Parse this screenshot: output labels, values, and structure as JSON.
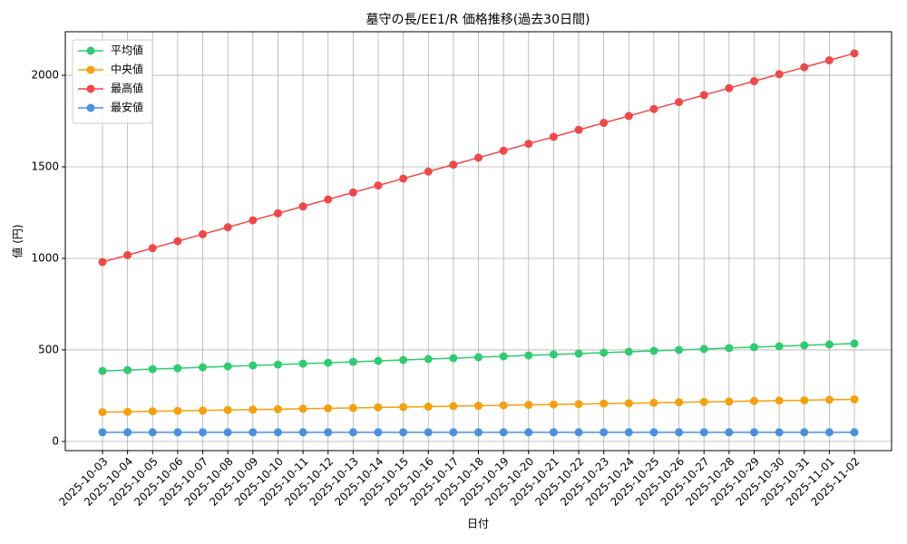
{
  "chart_data": {
    "type": "line",
    "title": "墓守の長/EE1/R 価格推移(過去30日間)",
    "x_label": "日付",
    "y_label": "値 (円)",
    "categories": [
      "2025-10-03",
      "2025-10-04",
      "2025-10-05",
      "2025-10-06",
      "2025-10-07",
      "2025-10-08",
      "2025-10-09",
      "2025-10-10",
      "2025-10-11",
      "2025-10-12",
      "2025-10-13",
      "2025-10-14",
      "2025-10-15",
      "2025-10-16",
      "2025-10-17",
      "2025-10-18",
      "2025-10-19",
      "2025-10-20",
      "2025-10-21",
      "2025-10-22",
      "2025-10-23",
      "2025-10-24",
      "2025-10-25",
      "2025-10-26",
      "2025-10-27",
      "2025-10-28",
      "2025-10-29",
      "2025-10-30",
      "2025-10-31",
      "2025-11-01",
      "2025-11-02"
    ],
    "series": [
      {
        "name": "平均値",
        "color": "#2ecc71",
        "values": [
          385,
          390,
          395,
          400,
          405,
          410,
          415,
          420,
          425,
          430,
          435,
          440,
          445,
          450,
          455,
          460,
          465,
          470,
          475,
          480,
          485,
          490,
          495,
          500,
          505,
          510,
          515,
          520,
          525,
          530,
          535
        ]
      },
      {
        "name": "中央値",
        "color": "#f5a00c",
        "values": [
          160,
          162,
          165,
          167,
          169,
          172,
          174,
          176,
          179,
          181,
          183,
          186,
          188,
          190,
          193,
          195,
          197,
          200,
          202,
          204,
          207,
          209,
          211,
          214,
          216,
          218,
          221,
          223,
          225,
          228,
          230
        ]
      },
      {
        "name": "最高値",
        "color": "#f04848",
        "values": [
          980,
          1018,
          1056,
          1094,
          1132,
          1170,
          1208,
          1246,
          1284,
          1322,
          1360,
          1398,
          1436,
          1474,
          1512,
          1550,
          1588,
          1626,
          1664,
          1702,
          1740,
          1778,
          1816,
          1854,
          1892,
          1930,
          1968,
          2006,
          2044,
          2082,
          2120
        ]
      },
      {
        "name": "最安値",
        "color": "#4a90e2",
        "values": [
          50,
          50,
          50,
          50,
          50,
          50,
          50,
          50,
          50,
          50,
          50,
          50,
          50,
          50,
          50,
          50,
          50,
          50,
          50,
          50,
          50,
          50,
          50,
          50,
          50,
          50,
          50,
          50,
          50,
          50,
          50
        ]
      }
    ],
    "ylim": [
      -50,
      2238
    ],
    "yticks": [
      0,
      500,
      1000,
      1500,
      2000
    ],
    "grid": true,
    "legend": "upper-left"
  }
}
